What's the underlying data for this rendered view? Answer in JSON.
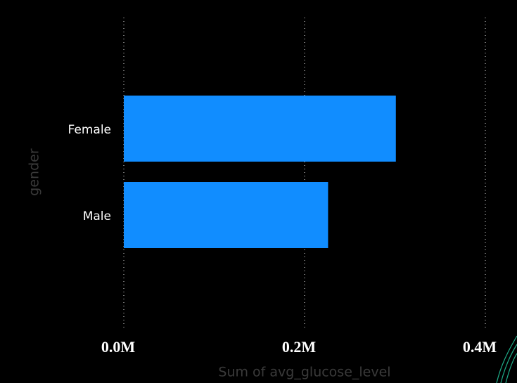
{
  "chart_data": {
    "type": "bar",
    "orientation": "horizontal",
    "x_label": "Sum of avg_glucose_level",
    "y_label": "gender",
    "categories": [
      "Female",
      "Male"
    ],
    "values": [
      301000,
      226000
    ],
    "color": "#118dff",
    "xlim": [
      0,
      400000
    ],
    "xticks": [
      {
        "value": 0,
        "label": "0.0M"
      },
      {
        "value": 200000,
        "label": "0.2M"
      },
      {
        "value": 400000,
        "label": "0.4M"
      }
    ],
    "grid": true
  }
}
